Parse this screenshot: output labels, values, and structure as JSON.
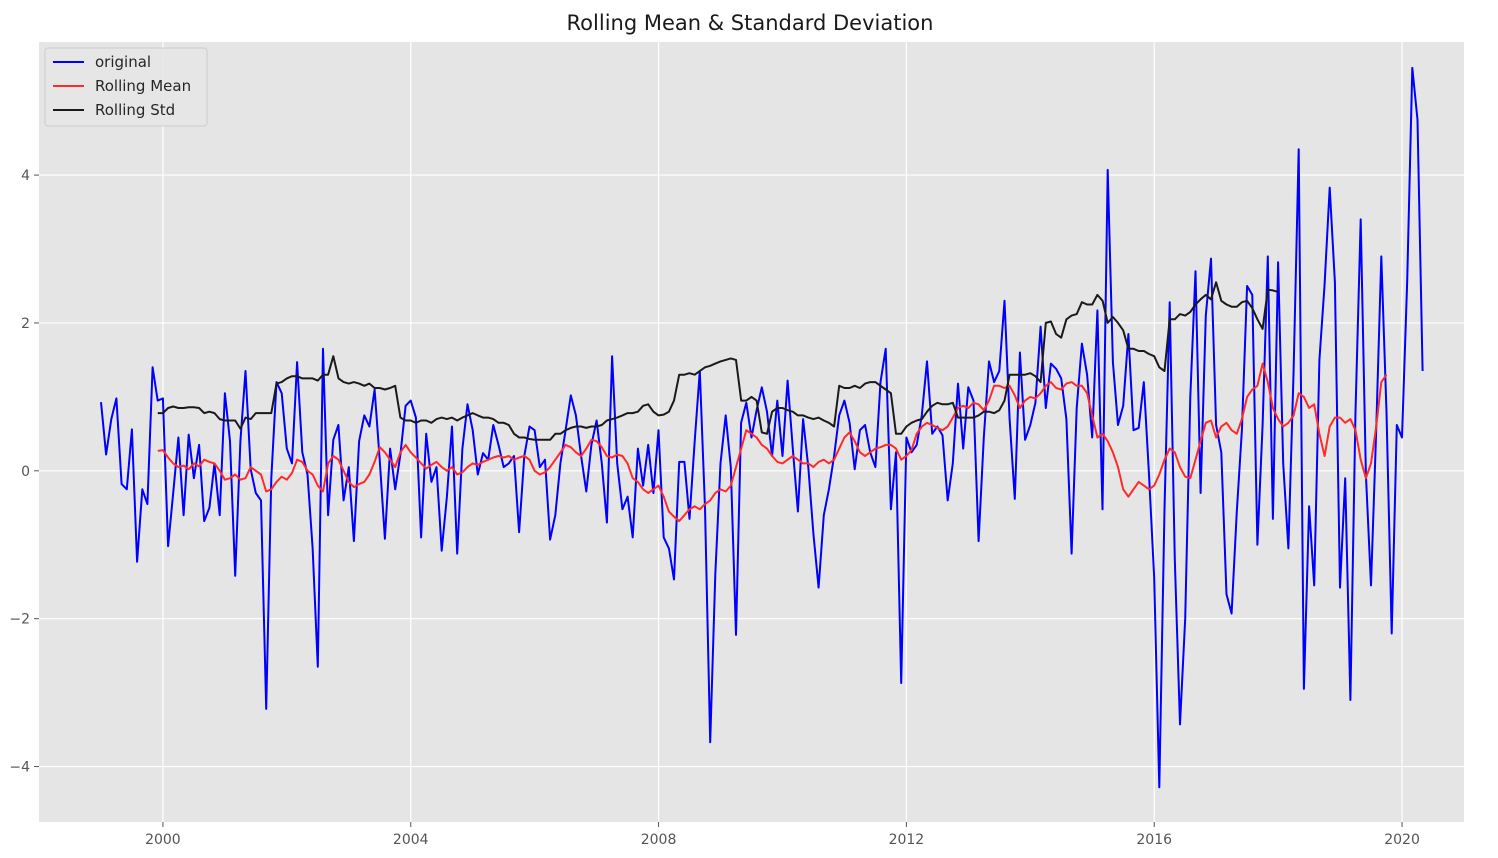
{
  "chart_data": {
    "type": "line",
    "title": "Rolling Mean & Standard Deviation",
    "xlabel": "",
    "ylabel": "",
    "style": "ggplot",
    "background": "#e5e5e5",
    "grid": true,
    "legend_position": "top-left",
    "xlim": [
      1998.0,
      2021.0
    ],
    "ylim": [
      -4.75,
      5.8
    ],
    "x_ticks": [
      2000,
      2004,
      2008,
      2012,
      2016,
      2020
    ],
    "y_ticks": [
      -4,
      -2,
      0,
      2,
      4
    ],
    "series": [
      {
        "name": "original",
        "color": "#0000ff",
        "x_start": 1999.0,
        "x_step": 0.08333,
        "values": [
          0.93,
          0.22,
          0.7,
          0.98,
          -0.18,
          -0.25,
          0.56,
          -1.23,
          -0.25,
          -0.45,
          1.4,
          0.95,
          0.98,
          -1.02,
          -0.3,
          0.45,
          -0.6,
          0.49,
          -0.1,
          0.35,
          -0.68,
          -0.5,
          0.1,
          -0.6,
          1.05,
          0.4,
          -1.42,
          0.4,
          1.35,
          0.02,
          -0.3,
          -0.4,
          -3.22,
          -0.1,
          1.2,
          1.05,
          0.3,
          0.1,
          1.47,
          0.25,
          -0.05,
          -1.04,
          -2.65,
          1.65,
          -0.6,
          0.42,
          0.62,
          -0.4,
          0.05,
          -0.95,
          0.4,
          0.75,
          0.6,
          1.1,
          0.15,
          -0.92,
          0.3,
          -0.25,
          0.22,
          0.88,
          0.95,
          0.72,
          -0.9,
          0.5,
          -0.15,
          0.05,
          -1.08,
          -0.35,
          0.6,
          -1.12,
          0.3,
          0.9,
          0.55,
          -0.05,
          0.24,
          0.15,
          0.62,
          0.35,
          0.05,
          0.1,
          0.2,
          -0.83,
          0.2,
          0.6,
          0.55,
          0.05,
          0.15,
          -0.93,
          -0.6,
          0.1,
          0.55,
          1.02,
          0.75,
          0.2,
          -0.28,
          0.35,
          0.68,
          0.1,
          -0.7,
          1.55,
          0.1,
          -0.52,
          -0.35,
          -0.9,
          0.3,
          -0.2,
          0.35,
          -0.3,
          0.55,
          -0.9,
          -1.05,
          -1.47,
          0.12,
          0.12,
          -0.65,
          0.4,
          1.35,
          -0.5,
          -3.67,
          -1.4,
          0.1,
          0.75,
          0.05,
          -2.22,
          0.65,
          0.92,
          0.45,
          0.82,
          1.13,
          0.8,
          0.2,
          0.95,
          0.2,
          1.22,
          0.3,
          -0.55,
          0.7,
          0.05,
          -0.85,
          -1.58,
          -0.6,
          -0.25,
          0.2,
          0.75,
          0.95,
          0.65,
          0.02,
          0.55,
          0.62,
          0.25,
          0.05,
          1.2,
          1.65,
          -0.52,
          0.25,
          -2.87,
          0.45,
          0.25,
          0.35,
          0.75,
          1.48,
          0.5,
          0.6,
          0.48,
          -0.4,
          0.1,
          1.18,
          0.3,
          1.13,
          0.95,
          -0.95,
          0.45,
          1.48,
          1.2,
          1.35,
          2.3,
          0.7,
          -0.38,
          1.6,
          0.42,
          0.62,
          0.92,
          1.95,
          0.85,
          1.45,
          1.38,
          1.25,
          0.7,
          -1.12,
          0.85,
          1.72,
          1.3,
          0.45,
          2.17,
          -0.52,
          4.07,
          1.47,
          0.62,
          0.88,
          1.85,
          0.55,
          0.58,
          1.2,
          -0.05,
          -1.45,
          -4.28,
          -0.52,
          2.28,
          -1.2,
          -3.43,
          -2.0,
          1.0,
          2.7,
          -0.3,
          2.1,
          2.87,
          0.62,
          0.25,
          -1.67,
          -1.93,
          -0.55,
          0.55,
          2.5,
          2.38,
          -1.0,
          0.62,
          2.9,
          -0.65,
          2.82,
          0.1,
          -1.05,
          1.35,
          4.35,
          -2.95,
          -0.48,
          -1.55,
          1.5,
          2.5,
          3.83,
          2.55,
          -1.58,
          -0.1,
          -3.1,
          0.8,
          3.4,
          -0.05,
          -1.55,
          0.55,
          2.9,
          0.8,
          -2.2,
          0.62,
          0.45,
          2.57,
          5.45,
          4.75,
          1.35
        ]
      },
      {
        "name": "Rolling Mean",
        "color": "#ff2a2a",
        "x_start": 1999.9167,
        "x_step": 0.08333,
        "values": [
          0.27,
          0.28,
          0.18,
          0.1,
          0.05,
          0.07,
          0.02,
          0.1,
          0.06,
          0.15,
          0.12,
          0.1,
          0.0,
          -0.12,
          -0.1,
          -0.05,
          -0.12,
          -0.1,
          0.05,
          0.0,
          -0.05,
          -0.28,
          -0.25,
          -0.15,
          -0.08,
          -0.12,
          -0.03,
          0.15,
          0.12,
          0.0,
          -0.05,
          -0.2,
          -0.28,
          0.1,
          0.2,
          0.15,
          0.0,
          -0.15,
          -0.22,
          -0.18,
          -0.15,
          -0.05,
          0.12,
          0.32,
          0.25,
          0.15,
          0.05,
          0.25,
          0.35,
          0.25,
          0.18,
          0.1,
          0.03,
          0.08,
          0.12,
          0.05,
          0.0,
          0.05,
          -0.05,
          -0.02,
          0.05,
          0.1,
          0.08,
          0.12,
          0.15,
          0.18,
          0.2,
          0.18,
          0.2,
          0.15,
          0.18,
          0.2,
          0.15,
          0.0,
          -0.05,
          -0.02,
          0.05,
          0.15,
          0.25,
          0.35,
          0.32,
          0.25,
          0.2,
          0.3,
          0.42,
          0.4,
          0.32,
          0.2,
          0.18,
          0.22,
          0.2,
          0.1,
          -0.1,
          -0.15,
          -0.25,
          -0.3,
          -0.25,
          -0.2,
          -0.35,
          -0.55,
          -0.62,
          -0.68,
          -0.6,
          -0.52,
          -0.48,
          -0.52,
          -0.45,
          -0.4,
          -0.3,
          -0.25,
          -0.28,
          -0.2,
          0.05,
          0.3,
          0.55,
          0.5,
          0.45,
          0.35,
          0.3,
          0.2,
          0.12,
          0.1,
          0.15,
          0.2,
          0.15,
          0.1,
          0.1,
          0.05,
          0.12,
          0.15,
          0.1,
          0.15,
          0.3,
          0.45,
          0.52,
          0.4,
          0.25,
          0.2,
          0.25,
          0.3,
          0.32,
          0.35,
          0.35,
          0.3,
          0.15,
          0.2,
          0.28,
          0.5,
          0.6,
          0.65,
          0.62,
          0.58,
          0.55,
          0.6,
          0.72,
          0.85,
          0.88,
          0.85,
          0.92,
          0.9,
          0.82,
          0.95,
          1.15,
          1.15,
          1.12,
          1.15,
          1.02,
          0.85,
          0.95,
          1.0,
          0.98,
          1.05,
          1.15,
          1.2,
          1.12,
          1.1,
          1.18,
          1.2,
          1.15,
          1.15,
          1.05,
          0.75,
          0.45,
          0.5,
          0.4,
          0.25,
          0.05,
          -0.25,
          -0.35,
          -0.25,
          -0.15,
          -0.2,
          -0.25,
          -0.2,
          -0.05,
          0.15,
          0.3,
          0.25,
          0.05,
          -0.08,
          -0.1,
          0.15,
          0.4,
          0.65,
          0.68,
          0.45,
          0.6,
          0.65,
          0.55,
          0.5,
          0.7,
          1.0,
          1.1,
          1.15,
          1.45,
          1.2,
          0.85,
          0.7,
          0.6,
          0.65,
          0.75,
          1.05,
          1.0,
          0.85,
          0.9,
          0.5,
          0.2,
          0.6,
          0.72,
          0.72,
          0.65,
          0.7,
          0.55,
          0.15,
          -0.1,
          0.1,
          0.6,
          1.2,
          1.3
        ]
      },
      {
        "name": "Rolling Std",
        "color": "#1a1a1a",
        "x_start": 1999.9167,
        "x_step": 0.08333,
        "values": [
          0.78,
          0.78,
          0.85,
          0.87,
          0.85,
          0.85,
          0.86,
          0.86,
          0.85,
          0.78,
          0.8,
          0.78,
          0.7,
          0.68,
          0.68,
          0.68,
          0.57,
          0.72,
          0.7,
          0.78,
          0.78,
          0.78,
          0.78,
          1.18,
          1.2,
          1.25,
          1.28,
          1.28,
          1.25,
          1.25,
          1.25,
          1.22,
          1.3,
          1.3,
          1.55,
          1.25,
          1.2,
          1.18,
          1.2,
          1.18,
          1.15,
          1.18,
          1.12,
          1.12,
          1.1,
          1.12,
          1.15,
          0.72,
          0.68,
          0.68,
          0.65,
          0.68,
          0.68,
          0.65,
          0.7,
          0.72,
          0.7,
          0.72,
          0.68,
          0.72,
          0.75,
          0.78,
          0.75,
          0.72,
          0.72,
          0.7,
          0.65,
          0.65,
          0.62,
          0.5,
          0.45,
          0.45,
          0.43,
          0.42,
          0.42,
          0.42,
          0.42,
          0.5,
          0.5,
          0.55,
          0.58,
          0.6,
          0.6,
          0.58,
          0.6,
          0.6,
          0.62,
          0.68,
          0.7,
          0.72,
          0.75,
          0.78,
          0.78,
          0.8,
          0.88,
          0.9,
          0.8,
          0.75,
          0.76,
          0.8,
          0.95,
          1.3,
          1.3,
          1.32,
          1.3,
          1.35,
          1.4,
          1.42,
          1.45,
          1.48,
          1.5,
          1.52,
          1.5,
          0.95,
          0.95,
          1.0,
          0.95,
          0.52,
          0.5,
          0.8,
          0.85,
          0.85,
          0.82,
          0.8,
          0.75,
          0.75,
          0.72,
          0.7,
          0.72,
          0.68,
          0.65,
          0.6,
          1.15,
          1.12,
          1.12,
          1.15,
          1.12,
          1.18,
          1.2,
          1.2,
          1.15,
          1.1,
          1.05,
          0.5,
          0.5,
          0.6,
          0.65,
          0.68,
          0.7,
          0.8,
          0.88,
          0.92,
          0.9,
          0.9,
          0.92,
          0.72,
          0.72,
          0.72,
          0.72,
          0.75,
          0.8,
          0.8,
          0.78,
          0.82,
          0.95,
          1.3,
          1.3,
          1.3,
          1.3,
          1.32,
          1.28,
          1.2,
          2.0,
          2.02,
          1.85,
          1.8,
          2.05,
          2.1,
          2.12,
          2.28,
          2.25,
          2.25,
          2.38,
          2.3,
          2.0,
          2.08,
          2.0,
          1.9,
          1.65,
          1.65,
          1.62,
          1.62,
          1.58,
          1.55,
          1.4,
          1.35,
          2.05,
          2.05,
          2.12,
          2.1,
          2.15,
          2.25,
          2.32,
          2.38,
          2.32,
          2.55,
          2.3,
          2.25,
          2.22,
          2.22,
          2.28,
          2.3,
          2.2,
          2.05,
          1.92,
          2.45,
          2.44,
          2.42
        ]
      }
    ]
  }
}
